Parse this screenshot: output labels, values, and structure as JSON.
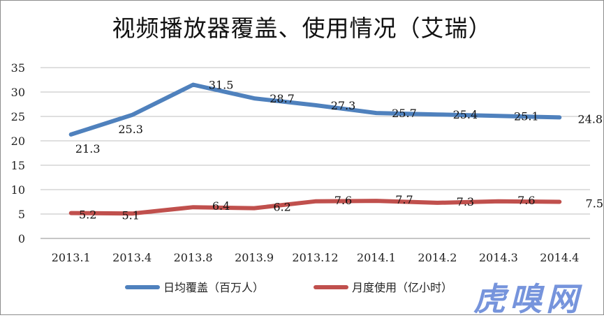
{
  "chart_data": {
    "type": "line",
    "title": "视频播放器覆盖、使用情况（艾瑞）",
    "categories": [
      "2013.1",
      "2013.4",
      "2013.8",
      "2013.9",
      "2013.12",
      "2014.1",
      "2014.2",
      "2014.3",
      "2014.4"
    ],
    "y_ticks": [
      "0",
      "5",
      "10",
      "15",
      "20",
      "25",
      "30",
      "35"
    ],
    "ylim": [
      0,
      35
    ],
    "grid": true,
    "legend_position": "bottom",
    "series": [
      {
        "name": "日均覆盖（百万人）",
        "color": "#4f81bd",
        "values": [
          21.3,
          25.3,
          31.5,
          28.7,
          27.3,
          25.7,
          25.4,
          25.1,
          24.8
        ],
        "labels": [
          "21.3",
          "25.3",
          "31.5",
          "28.7",
          "27.3",
          "25.7",
          "25.4",
          "25.1",
          "24.8"
        ]
      },
      {
        "name": "月度使用（亿小时）",
        "color": "#c0504d",
        "values": [
          5.2,
          5.1,
          6.4,
          6.2,
          7.6,
          7.7,
          7.3,
          7.6,
          7.5
        ],
        "labels": [
          "5.2",
          "5.1",
          "6.4",
          "6.2",
          "7.6",
          "7.7",
          "7.3",
          "7.6",
          "7.5"
        ]
      }
    ]
  },
  "watermark": "虎嗅网"
}
